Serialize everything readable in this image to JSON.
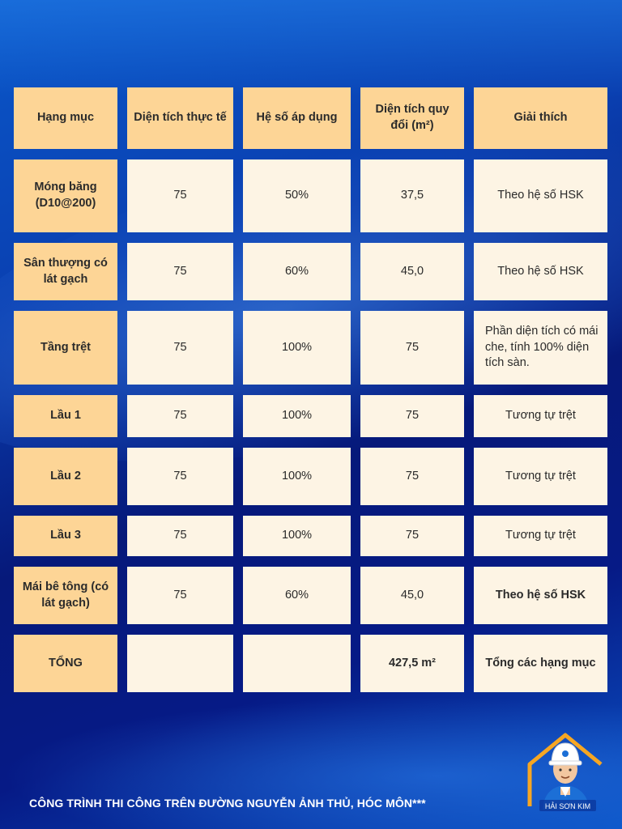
{
  "table": {
    "headers": [
      "Hạng mục",
      "Diện tích thực tế",
      "Hệ số áp dụng",
      "Diện tích quy đổi (m²)",
      "Giải thích"
    ],
    "rows": [
      {
        "item": "Móng băng (D10@200)",
        "actual": "75",
        "coef": "50%",
        "converted": "37,5",
        "note": "Theo hệ số HSK"
      },
      {
        "item": "Sân thượng có lát gạch",
        "actual": "75",
        "coef": "60%",
        "converted": "45,0",
        "note": "Theo hệ số HSK"
      },
      {
        "item": "Tầng trệt",
        "actual": "75",
        "coef": "100%",
        "converted": "75",
        "note": "Phần diện tích có mái che, tính 100% diện tích sàn."
      },
      {
        "item": "Lầu 1",
        "actual": "75",
        "coef": "100%",
        "converted": "75",
        "note": "Tương tự trệt"
      },
      {
        "item": "Lầu 2",
        "actual": "75",
        "coef": "100%",
        "converted": "75",
        "note": "Tương tự trệt"
      },
      {
        "item": "Lầu 3",
        "actual": "75",
        "coef": "100%",
        "converted": "75",
        "note": "Tương tự trệt"
      },
      {
        "item": "Mái bê tông (có lát gạch)",
        "actual": "75",
        "coef": "60%",
        "converted": "45,0",
        "note": "Theo hệ số HSK"
      },
      {
        "item": "TỔNG",
        "actual": "",
        "coef": "",
        "converted": "427,5 m²",
        "note": "Tổng các hạng mục"
      }
    ]
  },
  "footer": {
    "text": "CÔNG TRÌNH THI CÔNG TRÊN ĐƯỜNG NGUYỄN ẢNH THỦ, HÓC MÔN***"
  },
  "logo": {
    "text": "HẢI SƠN KIM",
    "icon": "worker-house-logo-icon"
  },
  "colors": {
    "header": "#fdd596",
    "body": "#fdf4e4",
    "accent": "#f6a623"
  }
}
